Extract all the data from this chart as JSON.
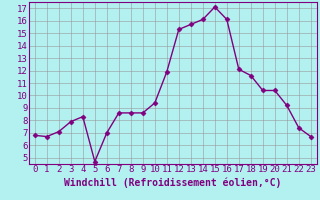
{
  "x": [
    0,
    1,
    2,
    3,
    4,
    5,
    6,
    7,
    8,
    9,
    10,
    11,
    12,
    13,
    14,
    15,
    16,
    17,
    18,
    19,
    20,
    21,
    22,
    23
  ],
  "y": [
    6.8,
    6.7,
    7.1,
    7.9,
    8.3,
    4.7,
    7.0,
    8.6,
    8.6,
    8.6,
    9.4,
    11.9,
    15.3,
    15.7,
    16.1,
    17.1,
    16.1,
    12.1,
    11.6,
    10.4,
    10.4,
    9.2,
    7.4,
    6.7
  ],
  "line_color": "#800080",
  "marker": "D",
  "marker_size": 2.5,
  "bg_color": "#b3f0f0",
  "grid_color": "#999999",
  "xlabel": "Windchill (Refroidissement éolien,°C)",
  "xlim": [
    -0.5,
    23.5
  ],
  "ylim": [
    4.5,
    17.5
  ],
  "yticks": [
    5,
    6,
    7,
    8,
    9,
    10,
    11,
    12,
    13,
    14,
    15,
    16,
    17
  ],
  "xticks": [
    0,
    1,
    2,
    3,
    4,
    5,
    6,
    7,
    8,
    9,
    10,
    11,
    12,
    13,
    14,
    15,
    16,
    17,
    18,
    19,
    20,
    21,
    22,
    23
  ],
  "font_color": "#800080",
  "spine_color": "#800080",
  "tick_label_fontsize": 6.5,
  "xlabel_fontsize": 7.0,
  "linewidth": 1.0
}
